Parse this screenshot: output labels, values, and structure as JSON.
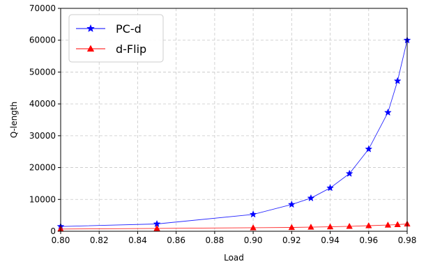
{
  "chart_data": {
    "type": "line",
    "xlabel": "Load",
    "ylabel": "Q-length",
    "xlim": [
      0.8,
      0.98
    ],
    "ylim": [
      0,
      70000
    ],
    "xticks": [
      0.8,
      0.82,
      0.84,
      0.86,
      0.88,
      0.9,
      0.92,
      0.94,
      0.96,
      0.98
    ],
    "xtick_labels": [
      "0.80",
      "0.82",
      "0.84",
      "0.86",
      "0.88",
      "0.90",
      "0.92",
      "0.94",
      "0.96",
      "0.98"
    ],
    "yticks": [
      0,
      10000,
      20000,
      30000,
      40000,
      50000,
      60000,
      70000
    ],
    "ytick_labels": [
      "0",
      "10000",
      "20000",
      "30000",
      "40000",
      "50000",
      "60000",
      "70000"
    ],
    "grid": true,
    "legend_position": "top-left",
    "series": [
      {
        "name": "PC-d",
        "color": "#0000ff",
        "marker": "star",
        "x": [
          0.8,
          0.85,
          0.9,
          0.92,
          0.93,
          0.94,
          0.95,
          0.96,
          0.97,
          0.975,
          0.98
        ],
        "y": [
          1500,
          2300,
          5300,
          8400,
          10400,
          13600,
          18100,
          25800,
          37300,
          47200,
          60000
        ]
      },
      {
        "name": "d-Flip",
        "color": "#ff0000",
        "marker": "triangle",
        "x": [
          0.8,
          0.85,
          0.9,
          0.92,
          0.93,
          0.94,
          0.95,
          0.96,
          0.97,
          0.975,
          0.98
        ],
        "y": [
          700,
          900,
          1100,
          1200,
          1300,
          1400,
          1550,
          1750,
          1950,
          2100,
          2300
        ]
      }
    ]
  }
}
